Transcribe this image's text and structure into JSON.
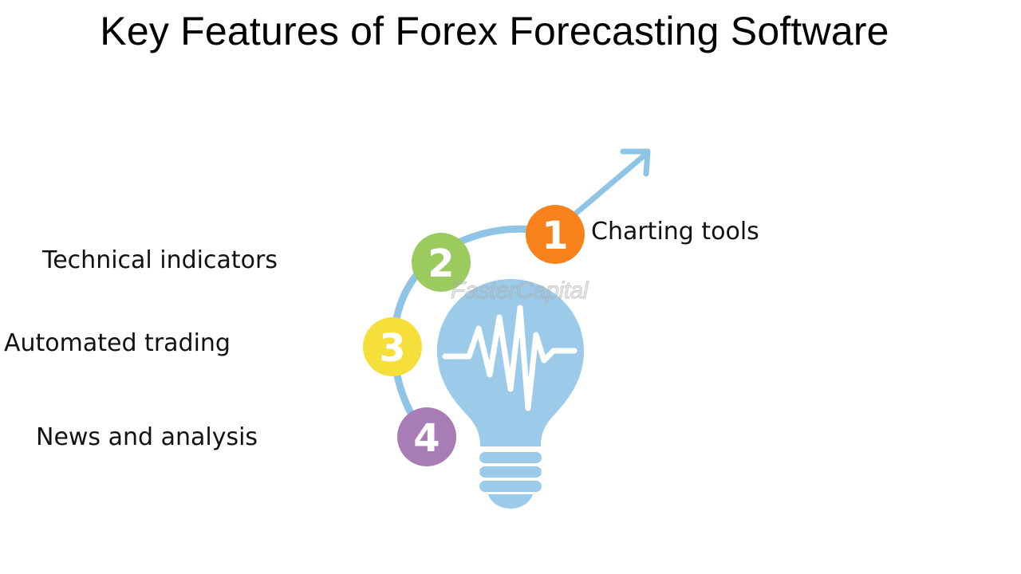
{
  "title": "Key Features of Forex Forecasting Software",
  "watermark": "FasterCapital",
  "features": [
    {
      "number": "1",
      "label": "Charting tools",
      "color": "#F7821B"
    },
    {
      "number": "2",
      "label": "Technical indicators",
      "color": "#9BCB5F"
    },
    {
      "number": "3",
      "label": "Automated trading",
      "color": "#F6DF3A"
    },
    {
      "number": "4",
      "label": "News and analysis",
      "color": "#A87CB4"
    }
  ],
  "colors": {
    "bulb": "#9CCBEA",
    "arc": "#8EC4E6",
    "pulse": "#ffffff",
    "text": "#111111"
  },
  "icons": {
    "bulb": "lightbulb-icon",
    "arrow": "arrow-up-right-icon",
    "pulse": "heartbeat-pulse-icon"
  }
}
